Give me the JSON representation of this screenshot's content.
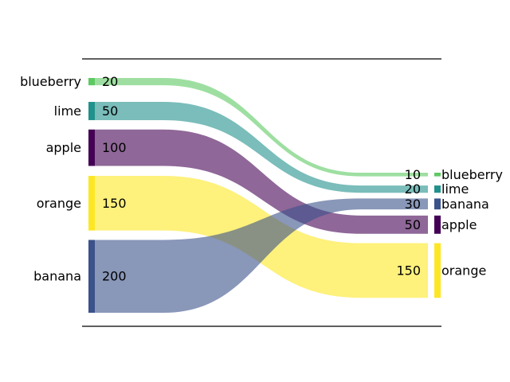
{
  "chart_data": {
    "type": "sankey",
    "title": "",
    "left_nodes": [
      {
        "name": "blueberry",
        "value": 20,
        "color": "#5ec962"
      },
      {
        "name": "lime",
        "value": 50,
        "color": "#21918c"
      },
      {
        "name": "apple",
        "value": 100,
        "color": "#440154"
      },
      {
        "name": "orange",
        "value": 150,
        "color": "#fde725"
      },
      {
        "name": "banana",
        "value": 200,
        "color": "#3b528b"
      }
    ],
    "right_nodes": [
      {
        "name": "blueberry",
        "value": 10,
        "color": "#5ec962"
      },
      {
        "name": "lime",
        "value": 20,
        "color": "#21918c"
      },
      {
        "name": "banana",
        "value": 30,
        "color": "#3b528b"
      },
      {
        "name": "apple",
        "value": 50,
        "color": "#440154"
      },
      {
        "name": "orange",
        "value": 150,
        "color": "#fde725"
      }
    ],
    "flows": [
      {
        "source": "blueberry",
        "target": "blueberry",
        "left_value": 20,
        "right_value": 10
      },
      {
        "source": "lime",
        "target": "lime",
        "left_value": 50,
        "right_value": 20
      },
      {
        "source": "apple",
        "target": "apple",
        "left_value": 100,
        "right_value": 50
      },
      {
        "source": "orange",
        "target": "orange",
        "left_value": 150,
        "right_value": 150
      },
      {
        "source": "banana",
        "target": "banana",
        "left_value": 200,
        "right_value": 30
      }
    ]
  }
}
